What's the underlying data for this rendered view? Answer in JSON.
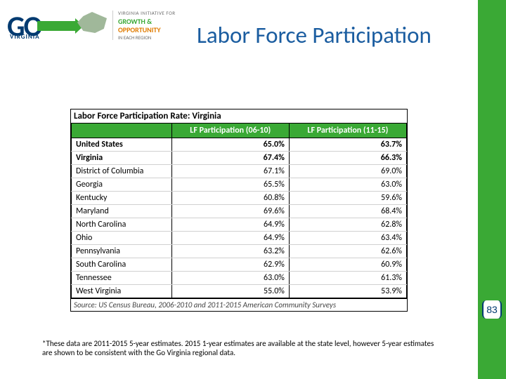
{
  "logo": {
    "go": "GO",
    "virginia": "VIRGINIA",
    "tagline": "VIRGINIA INITIATIVE FOR",
    "growth": "GROWTH &",
    "opportunity": "OPPORTUNITY",
    "region": "IN EACH REGION"
  },
  "slide": {
    "title": "Labor Force Participation",
    "page_number": "83"
  },
  "table": {
    "title": "Labor Force Participation Rate: Virginia",
    "columns": [
      "",
      "LF Participation (06-10)",
      "LF Participation (11-15)"
    ],
    "rows": [
      {
        "label": "United States",
        "c1": "65.0%",
        "c2": "63.7%",
        "bold": true
      },
      {
        "label": "Virginia",
        "c1": "67.4%",
        "c2": "66.3%",
        "bold": true
      },
      {
        "label": "District of Columbia",
        "c1": "67.1%",
        "c2": "69.0%",
        "bold": false
      },
      {
        "label": "Georgia",
        "c1": "65.5%",
        "c2": "63.0%",
        "bold": false
      },
      {
        "label": "Kentucky",
        "c1": "60.8%",
        "c2": "59.6%",
        "bold": false
      },
      {
        "label": "Maryland",
        "c1": "69.6%",
        "c2": "68.4%",
        "bold": false
      },
      {
        "label": "North Carolina",
        "c1": "64.9%",
        "c2": "62.8%",
        "bold": false
      },
      {
        "label": "Ohio",
        "c1": "64.9%",
        "c2": "63.4%",
        "bold": false
      },
      {
        "label": "Pennsylvania",
        "c1": "63.2%",
        "c2": "62.6%",
        "bold": false
      },
      {
        "label": "South Carolina",
        "c1": "62.9%",
        "c2": "60.9%",
        "bold": false
      },
      {
        "label": "Tennessee",
        "c1": "63.0%",
        "c2": "61.3%",
        "bold": false
      },
      {
        "label": "West Virginia",
        "c1": "55.0%",
        "c2": "53.9%",
        "bold": false
      }
    ],
    "source": "Source: US Census Bureau, 2006-2010 and 2011-2015 American Community Surveys"
  },
  "footnote": "*These data are 2011-2015 5-year estimates. 2015 1-year estimates are available at the state level, however 5-year estimates are shown to be consistent with the Go Virginia regional data.",
  "colors": {
    "green": "#3aa935",
    "blue": "#1b5da0",
    "navy": "#003a70",
    "orange": "#e07b00"
  }
}
